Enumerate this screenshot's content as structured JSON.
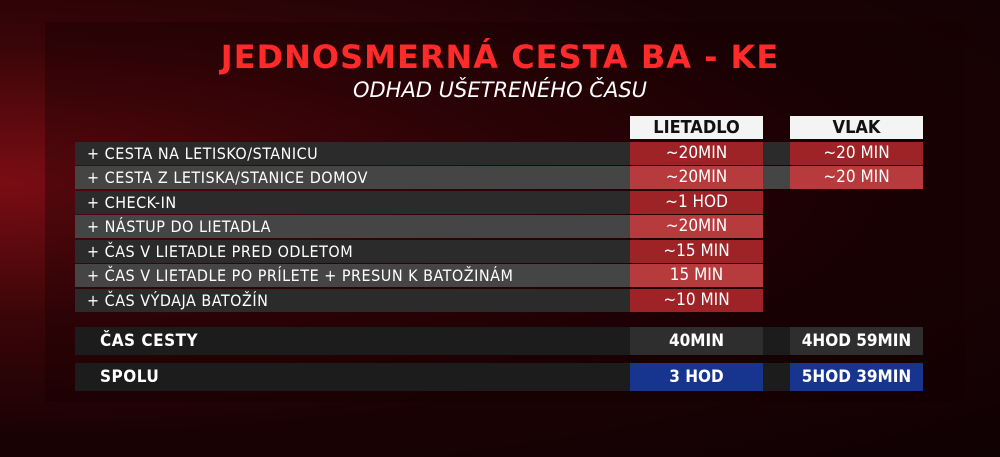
{
  "title": "JEDNOSMERNÁ CESTA BA - KE",
  "subtitle": "ODHAD UŠETRENÉHO ČASU",
  "columns": [
    "LIETADLO",
    "VLAK"
  ],
  "rows": [
    {
      "label": "+ CESTA NA LETISKO/STANICU",
      "plane": "~20MIN",
      "train": "~20 MIN"
    },
    {
      "label": "+ CESTA Z LETISKA/STANICE DOMOV",
      "plane": "~20MIN",
      "train": "~20 MIN"
    },
    {
      "label": "+ CHECK-IN",
      "plane": "~1 HOD",
      "train": ""
    },
    {
      "label": "+ NÁSTUP DO LIETADLA",
      "plane": "~20MIN",
      "train": ""
    },
    {
      "label": "+ ČAS V LIETADLE PRED ODLETOM",
      "plane": "~15 MIN",
      "train": ""
    },
    {
      "label": "+ ČAS V LIETADLE PO PRÍLETE + PRESUN K BATOŽINÁM",
      "plane": "15 MIN",
      "train": ""
    },
    {
      "label": "+ ČAS VÝDAJA BATOŽÍN",
      "plane": "~10 MIN",
      "train": ""
    }
  ],
  "travel_time": {
    "label": "ČAS CESTY",
    "plane": "40MIN",
    "train": "4HOD 59MIN"
  },
  "total": {
    "label": "SPOLU",
    "plane": "3 HOD",
    "train": "5HOD 39MIN"
  },
  "colors": {
    "title": "#ff2a2a",
    "cell_red": "#9e2327",
    "cell_blue": "#17348f"
  }
}
